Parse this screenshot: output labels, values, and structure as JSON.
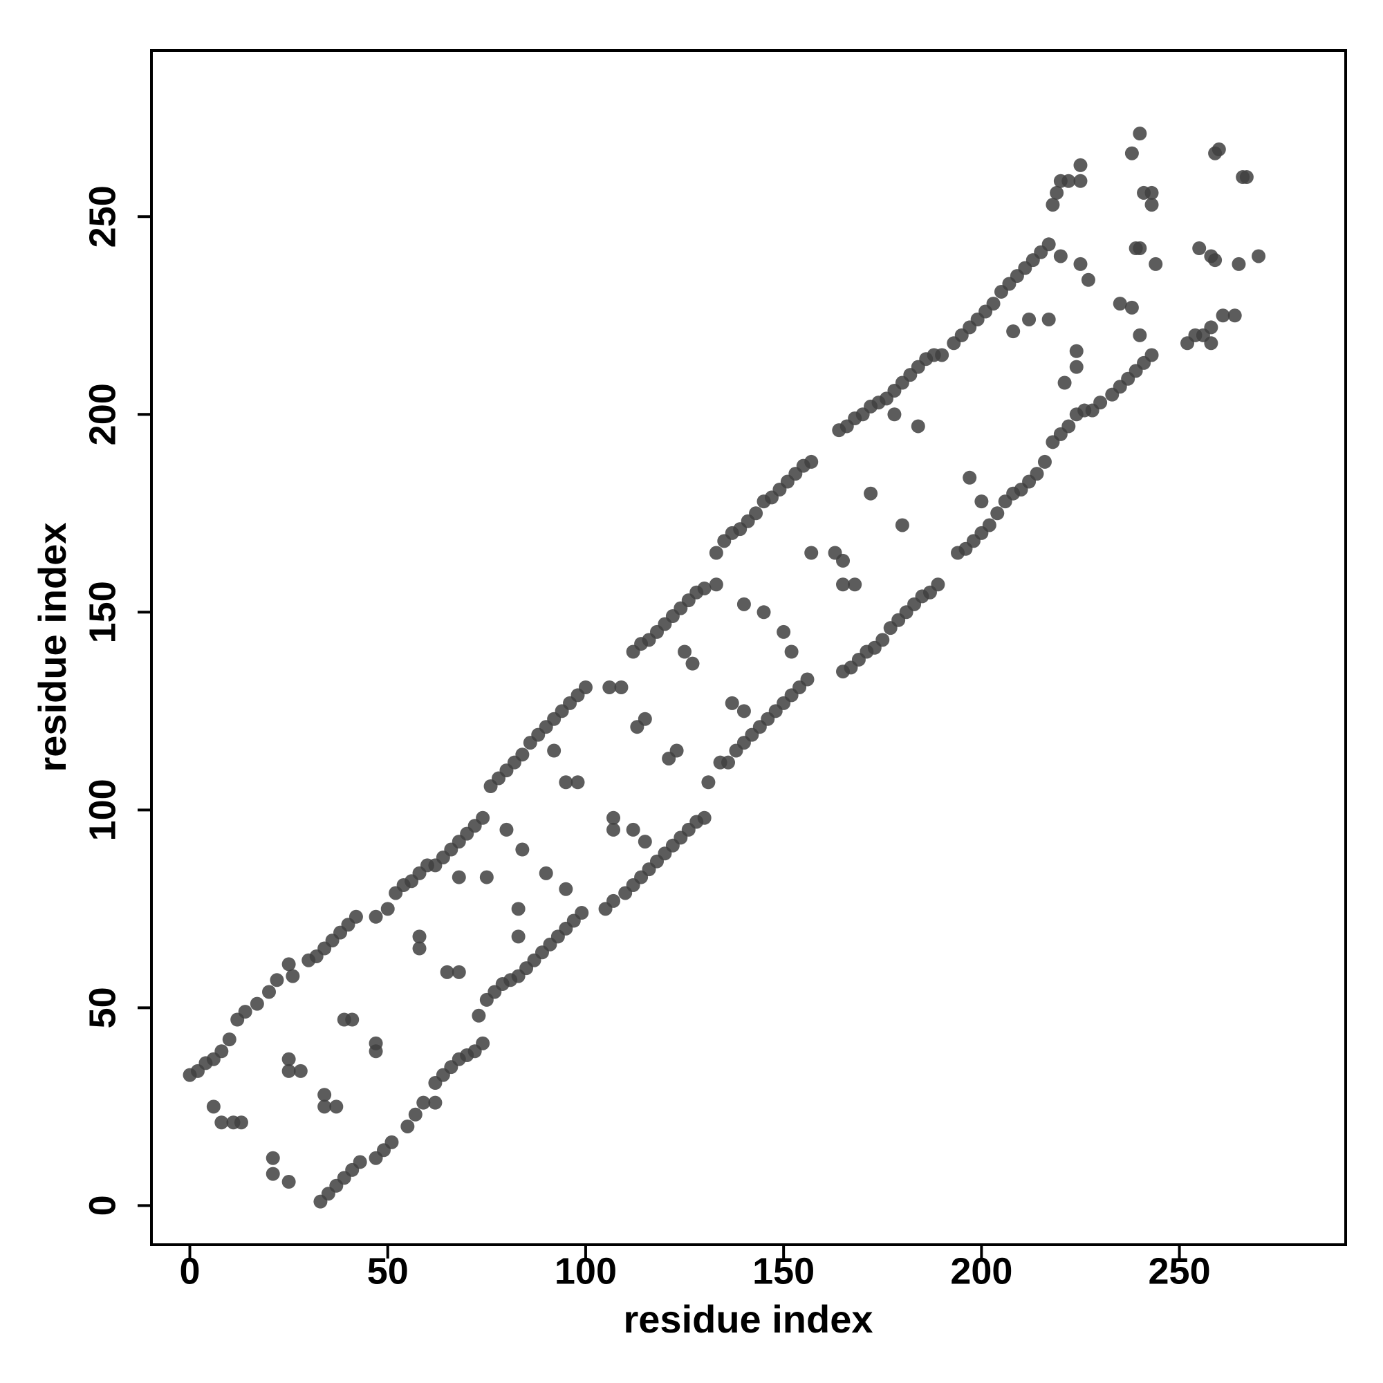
{
  "chart_data": {
    "type": "scatter",
    "xlabel": "residue index",
    "ylabel": "residue index",
    "color": "#3f3f3f",
    "opacity": 0.85,
    "xlim": [
      -9.7,
      292
    ],
    "ylim": [
      -9.9,
      292
    ],
    "xticks": [
      0,
      50,
      100,
      150,
      200,
      250
    ],
    "yticks": [
      0,
      50,
      100,
      150,
      200,
      250
    ],
    "x": [
      0,
      2,
      4,
      6,
      8,
      10,
      12,
      14,
      17,
      20,
      22,
      25,
      26,
      30,
      32,
      34,
      36,
      38,
      40,
      42,
      47,
      50,
      52,
      54,
      56,
      58,
      60,
      62,
      64,
      66,
      68,
      70,
      72,
      74,
      76,
      78,
      80,
      82,
      84,
      86,
      88,
      90,
      92,
      94,
      96,
      98,
      100,
      106,
      109,
      112,
      114,
      116,
      118,
      120,
      122,
      124,
      126,
      128,
      130,
      133,
      133,
      135,
      137,
      139,
      141,
      143,
      145,
      147,
      149,
      151,
      153,
      155,
      157,
      164,
      166,
      168,
      170,
      172,
      174,
      176,
      178,
      180,
      182,
      184,
      186,
      188,
      190,
      193,
      195,
      197,
      199,
      201,
      203,
      205,
      207,
      209,
      211,
      213,
      215,
      217,
      218,
      219,
      220,
      222,
      225,
      225,
      238,
      240,
      241,
      243,
      243,
      259,
      260,
      266,
      267,
      33,
      35,
      37,
      39,
      41,
      43,
      47,
      49,
      51,
      55,
      57,
      59,
      62,
      62,
      64,
      66,
      68,
      70,
      72,
      74,
      73,
      75,
      77,
      79,
      81,
      83,
      85,
      87,
      89,
      91,
      93,
      95,
      97,
      99,
      105,
      107,
      110,
      112,
      114,
      116,
      118,
      120,
      122,
      124,
      126,
      128,
      130,
      131,
      134,
      136,
      138,
      140,
      142,
      144,
      146,
      148,
      150,
      152,
      154,
      156,
      165,
      167,
      169,
      171,
      173,
      175,
      177,
      179,
      181,
      183,
      185,
      187,
      189,
      194,
      196,
      198,
      200,
      202,
      204,
      206,
      208,
      210,
      212,
      214,
      216,
      218,
      220,
      222,
      224,
      226,
      228,
      230,
      233,
      235,
      237,
      239,
      241,
      243,
      252,
      254,
      256,
      258,
      258,
      261,
      6,
      8,
      11,
      13,
      21,
      21,
      25,
      25,
      25,
      28,
      34,
      37,
      34,
      39,
      41,
      47,
      47,
      58,
      58,
      65,
      68,
      68,
      75,
      83,
      83,
      80,
      84,
      90,
      95,
      92,
      95,
      98,
      107,
      107,
      112,
      115,
      113,
      115,
      121,
      123,
      125,
      127,
      137,
      140,
      140,
      145,
      150,
      152,
      163,
      165,
      165,
      168,
      157,
      172,
      180,
      178,
      184,
      197,
      200,
      208,
      212,
      217,
      221,
      224,
      224,
      220,
      225,
      227,
      238,
      240,
      235,
      240,
      239,
      244,
      255,
      258,
      259,
      265,
      270,
      264
    ],
    "values": [
      33,
      34,
      36,
      37,
      39,
      42,
      47,
      49,
      51,
      54,
      57,
      61,
      58,
      62,
      63,
      65,
      67,
      69,
      71,
      73,
      73,
      75,
      79,
      81,
      82,
      84,
      86,
      86,
      88,
      90,
      92,
      94,
      96,
      98,
      106,
      108,
      110,
      112,
      114,
      117,
      119,
      121,
      123,
      125,
      127,
      129,
      131,
      131,
      131,
      140,
      142,
      143,
      145,
      147,
      149,
      151,
      153,
      155,
      156,
      157,
      165,
      168,
      170,
      171,
      173,
      175,
      178,
      179,
      181,
      183,
      185,
      187,
      188,
      196,
      197,
      199,
      200,
      202,
      203,
      204,
      206,
      208,
      210,
      212,
      214,
      215,
      215,
      218,
      220,
      222,
      224,
      226,
      228,
      231,
      233,
      235,
      237,
      239,
      241,
      243,
      253,
      256,
      259,
      259,
      263,
      259,
      266,
      271,
      256,
      256,
      253,
      266,
      267,
      260,
      260,
      1,
      3,
      5,
      7,
      9,
      11,
      12,
      14,
      16,
      20,
      23,
      26,
      26,
      31,
      33,
      35,
      37,
      38,
      39,
      41,
      48,
      52,
      54,
      56,
      57,
      58,
      60,
      62,
      64,
      66,
      68,
      70,
      72,
      74,
      75,
      77,
      79,
      81,
      83,
      85,
      87,
      89,
      91,
      93,
      95,
      97,
      98,
      107,
      112,
      112,
      115,
      117,
      119,
      121,
      123,
      125,
      127,
      129,
      131,
      133,
      135,
      136,
      138,
      140,
      141,
      143,
      146,
      148,
      150,
      152,
      154,
      155,
      157,
      165,
      166,
      168,
      170,
      172,
      175,
      178,
      180,
      181,
      183,
      185,
      188,
      193,
      195,
      197,
      200,
      201,
      201,
      203,
      205,
      207,
      209,
      211,
      213,
      215,
      218,
      220,
      220,
      222,
      218,
      225,
      25,
      21,
      21,
      21,
      8,
      12,
      6,
      34,
      37,
      34,
      25,
      25,
      28,
      47,
      47,
      39,
      41,
      68,
      65,
      59,
      59,
      83,
      83,
      68,
      75,
      95,
      90,
      84,
      80,
      115,
      107,
      107,
      98,
      95,
      95,
      92,
      121,
      123,
      113,
      115,
      140,
      137,
      127,
      125,
      152,
      150,
      145,
      140,
      165,
      163,
      157,
      157,
      165,
      180,
      172,
      200,
      197,
      184,
      178,
      221,
      224,
      224,
      208,
      212,
      216,
      240,
      238,
      234,
      227,
      220,
      228,
      242,
      242,
      238,
      242,
      240,
      239,
      238,
      240,
      225
    ]
  }
}
